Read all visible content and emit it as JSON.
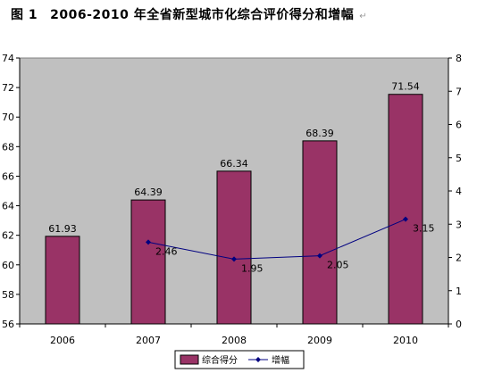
{
  "figure": {
    "label": "图 1",
    "title": "2006-2010 年全省新型城市化综合评价得分和增幅",
    "mark": "↵"
  },
  "chart_data": {
    "type": "bar",
    "categories": [
      "2006",
      "2007",
      "2008",
      "2009",
      "2010"
    ],
    "series": [
      {
        "name": "综合得分",
        "type": "bar",
        "axis": "left",
        "values": [
          61.93,
          64.39,
          66.34,
          68.39,
          71.54
        ],
        "labels": [
          "61.93",
          "64.39",
          "66.34",
          "68.39",
          "71.54"
        ],
        "color": "#993366"
      },
      {
        "name": "增幅",
        "type": "line",
        "axis": "right",
        "values": [
          null,
          2.46,
          1.95,
          2.05,
          3.15
        ],
        "labels": [
          "",
          "2.46",
          "1.95",
          "2.05",
          "3.15"
        ],
        "color": "#000080"
      }
    ],
    "y_left": {
      "min": 56,
      "max": 74,
      "step": 2,
      "ticks": [
        "56",
        "58",
        "60",
        "62",
        "64",
        "66",
        "68",
        "70",
        "72",
        "74"
      ]
    },
    "y_right": {
      "min": 0,
      "max": 8,
      "step": 1,
      "ticks": [
        "0",
        "1",
        "2",
        "3",
        "4",
        "5",
        "6",
        "7",
        "8"
      ]
    },
    "plot_background": "#c0c0c0",
    "gridlines": false,
    "legend_position": "bottom"
  }
}
